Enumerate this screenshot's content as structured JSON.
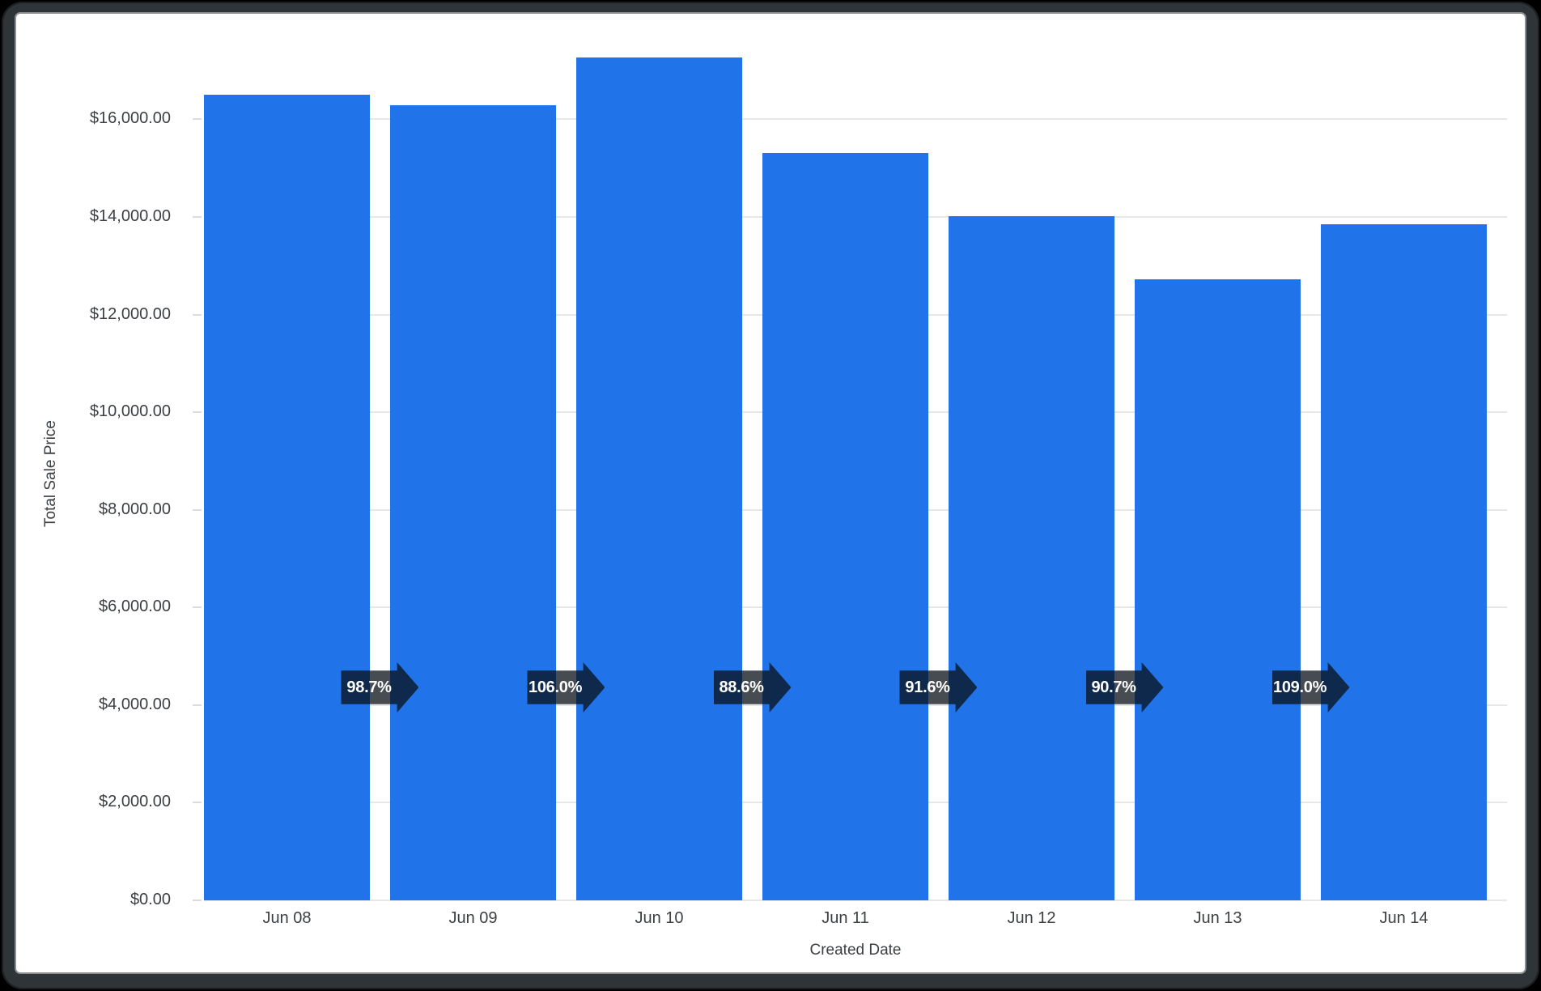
{
  "chart_data": {
    "type": "bar",
    "title": "",
    "xlabel": "Created Date",
    "ylabel": "Total Sale Price",
    "categories": [
      "Jun 08",
      "Jun 09",
      "Jun 10",
      "Jun 11",
      "Jun 12",
      "Jun 13",
      "Jun 14"
    ],
    "values": [
      16500,
      16290,
      17270,
      15310,
      14020,
      12715,
      13855
    ],
    "y_tick_labels": [
      "$0.00",
      "$2,000.00",
      "$4,000.00",
      "$6,000.00",
      "$8,000.00",
      "$10,000.00",
      "$12,000.00",
      "$14,000.00",
      "$16,000.00"
    ],
    "ylim": [
      0,
      17500
    ],
    "grid": true,
    "legend": false,
    "growth_arrows": {
      "labels": [
        "98.7%",
        "106.0%",
        "88.6%",
        "91.6%",
        "90.7%",
        "109.0%"
      ],
      "description": "period-over-period ratio shown on arrow between consecutive bars"
    },
    "colors": {
      "bar": "#2073E8",
      "gridline": "#E7E7E7",
      "axis_text": "#3C4043",
      "badge_background": "rgba(10,16,24,0.75)",
      "badge_text": "#FFFFFF",
      "card_background": "#FFFFFF",
      "frame": "#2E3437"
    }
  }
}
